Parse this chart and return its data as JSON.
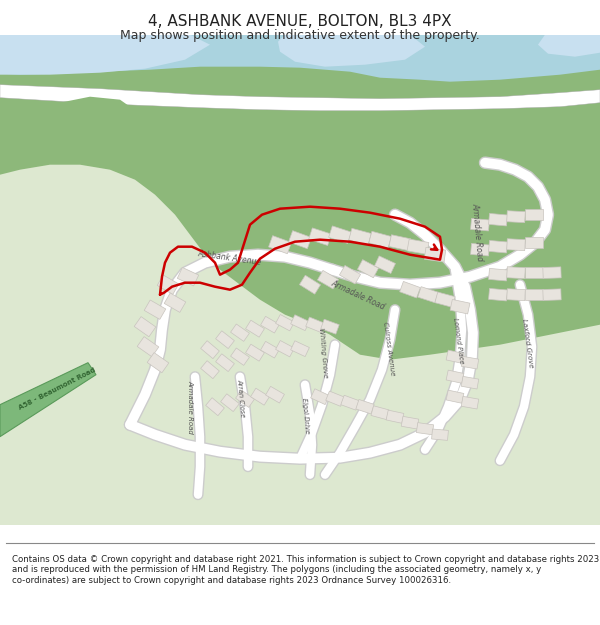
{
  "title": "4, ASHBANK AVENUE, BOLTON, BL3 4PX",
  "subtitle": "Map shows position and indicative extent of the property.",
  "footer": "Contains OS data © Crown copyright and database right 2021. This information is subject to Crown copyright and database rights 2023 and is reproduced with the permission of HM Land Registry. The polygons (including the associated geometry, namely x, y co-ordinates) are subject to Crown copyright and database rights 2023 Ordnance Survey 100026316.",
  "map_bg": "#dde8d0",
  "water_blue": "#aad3df",
  "water_light": "#c8e0f0",
  "green_dark": "#8db87a",
  "building_fill": "#e8e4de",
  "building_stroke": "#c8c4be",
  "road_label_color": "#555555",
  "red_outline": "#cc0000",
  "a58_label": "#336633",
  "figsize": [
    6.0,
    6.25
  ],
  "dpi": 100
}
